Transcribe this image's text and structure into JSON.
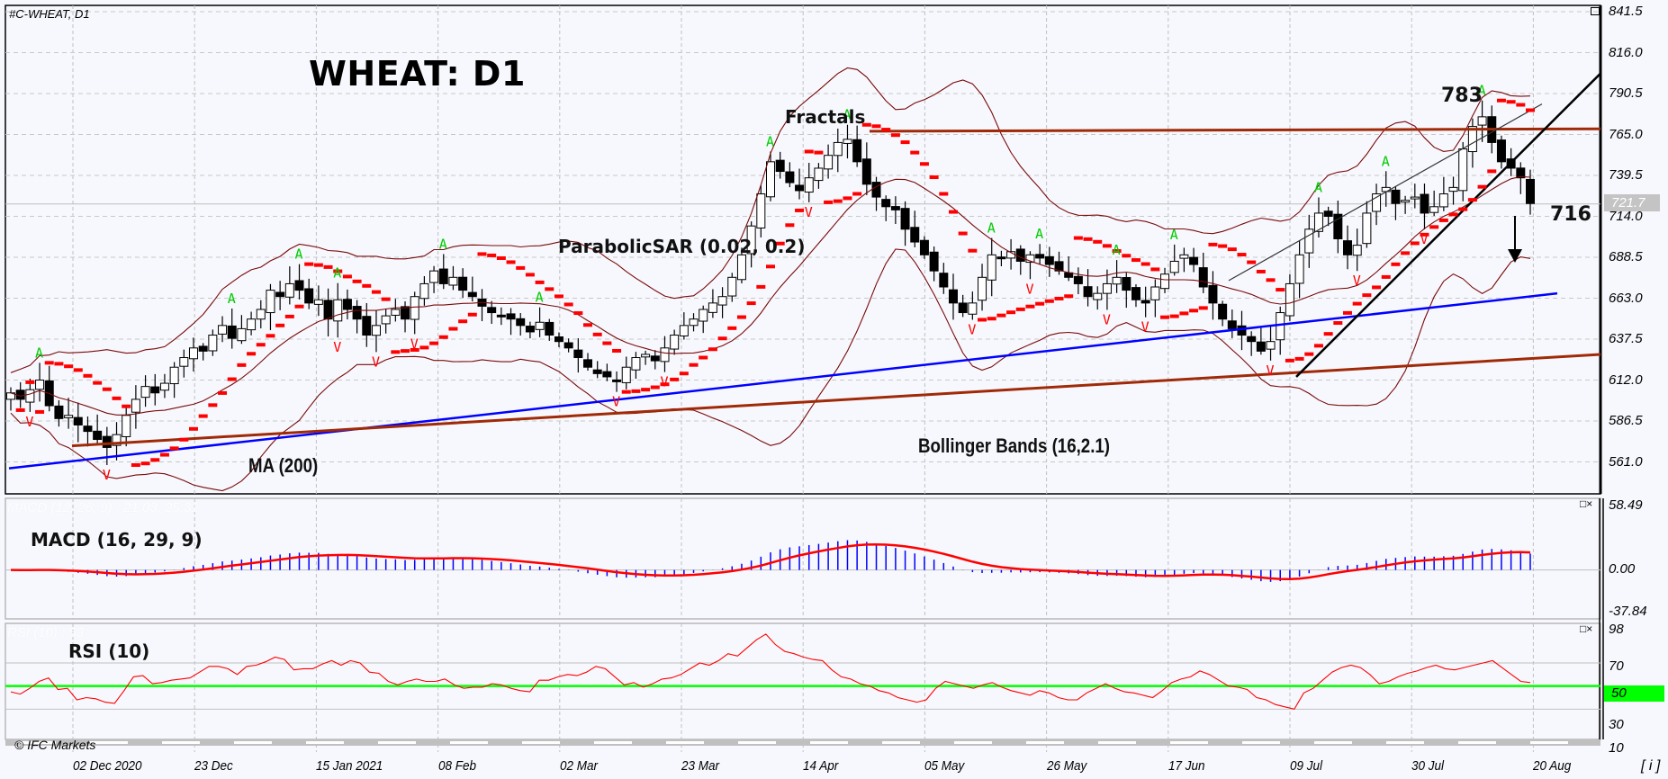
{
  "header": {
    "ticker": "#C-WHEAT, D1",
    "title": "WHEAT: D1"
  },
  "annotations": {
    "fractals": "Fractals",
    "parabolic_sar": "ParabolicSAR (0.02, 0.2)",
    "bollinger": "Bollinger Bands (16,2.1)",
    "ma": "MA (200)",
    "resistance_price": "783",
    "support_price": "716",
    "macd_title": "MACD (16, 29, 9)",
    "rsi_title": "RSI (10)",
    "macd_faint": "MACD (12, 26, 9) : 21.03, 25.31",
    "rsi_faint": "RSI (10) : 53"
  },
  "price_axis": {
    "ticks": [
      "841.5",
      "816.0",
      "790.5",
      "765.0",
      "739.5",
      "714.0",
      "688.5",
      "663.0",
      "637.5",
      "612.0",
      "586.5",
      "561.0"
    ],
    "current_price": "721.7"
  },
  "macd_axis": {
    "ticks": [
      "58.49",
      "0.00",
      "-37.84"
    ]
  },
  "rsi_axis": {
    "ticks": [
      "98",
      "70",
      "50",
      "30",
      "10"
    ]
  },
  "time_axis": {
    "labels": [
      "02 Dec 2020",
      "23 Dec",
      "15 Jan 2021",
      "08 Feb",
      "02 Mar",
      "23 Mar",
      "14 Apr",
      "05 May",
      "26 May",
      "17 Jun",
      "09 Jul",
      "30 Jul",
      "20 Aug"
    ]
  },
  "footer": {
    "copyright": "© IFC Markets",
    "info_button": "[ i ]"
  },
  "panel_controls": {
    "maximize": "□",
    "close": "×"
  },
  "colors": {
    "background": "#f6f8fd",
    "bull_candle": "#ffffff",
    "bear_candle": "#000000",
    "bollinger": "#7a0a0a",
    "sar": "#ff0000",
    "ma200": "#0000ff",
    "trendline_brown": "#a02a08",
    "fractal_up": "#00cc00",
    "fractal_down": "#ff0000",
    "macd_hist": "#0000ff",
    "macd_signal": "#ff0000",
    "rsi_line": "#ff0000",
    "rsi_level50": "#00ff00"
  },
  "chart_data": [
    {
      "type": "candlestick",
      "title": "WHEAT: D1",
      "symbol": "#C-WHEAT",
      "timeframe": "D1",
      "ylim": [
        548,
        845
      ],
      "y_ticks": [
        841.5,
        816.0,
        790.5,
        765.0,
        739.5,
        714.0,
        688.5,
        663.0,
        637.5,
        612.0,
        586.5,
        561.0
      ],
      "x_tick_labels": [
        "02 Dec 2020",
        "23 Dec",
        "15 Jan 2021",
        "08 Feb",
        "02 Mar",
        "23 Mar",
        "14 Apr",
        "05 May",
        "26 May",
        "17 Jun",
        "09 Jul",
        "30 Jul",
        "20 Aug"
      ],
      "current_price": 721.7,
      "annotations": [
        {
          "text": "783",
          "kind": "resistance/high"
        },
        {
          "text": "716",
          "kind": "target/support"
        },
        {
          "text": "down-arrow",
          "kind": "expected direction"
        }
      ],
      "indicators": [
        "ParabolicSAR (0.02, 0.2)",
        "Bollinger Bands (16,2.1)",
        "MA (200)",
        "Fractals"
      ],
      "closes": [
        604,
        600,
        606,
        612,
        596,
        588,
        590,
        584,
        580,
        575,
        570,
        578,
        590,
        600,
        608,
        604,
        610,
        620,
        626,
        632,
        630,
        640,
        646,
        638,
        644,
        650,
        656,
        668,
        664,
        672,
        668,
        660,
        662,
        650,
        662,
        656,
        650,
        640,
        646,
        652,
        656,
        650,
        664,
        672,
        680,
        672,
        676,
        668,
        664,
        658,
        654,
        652,
        650,
        646,
        642,
        648,
        640,
        636,
        632,
        626,
        620,
        616,
        614,
        612,
        620,
        626,
        628,
        624,
        632,
        640,
        646,
        650,
        656,
        660,
        664,
        676,
        690,
        708,
        728,
        748,
        742,
        735,
        730,
        738,
        744,
        752,
        760,
        762,
        748,
        734,
        726,
        720,
        718,
        706,
        698,
        690,
        680,
        670,
        660,
        654,
        660,
        676,
        690,
        688,
        692,
        686,
        690,
        688,
        684,
        680,
        676,
        672,
        664,
        666,
        672,
        676,
        668,
        662,
        660,
        670,
        678,
        686,
        690,
        684,
        670,
        660,
        650,
        644,
        640,
        636,
        630,
        636,
        654,
        672,
        690,
        706,
        716,
        714,
        700,
        690,
        696,
        716,
        728,
        732,
        722,
        724,
        726,
        716,
        720,
        728,
        732,
        756,
        770,
        776,
        760,
        748,
        744,
        738,
        722
      ],
      "ma200": {
        "start": 557,
        "end": 666
      },
      "trendlines": [
        {
          "from": [
            571,
            "2020-11-30"
          ],
          "to": [
            628,
            "2021-08-20"
          ],
          "color": "brown"
        },
        {
          "level": 767,
          "color": "brown",
          "kind": "horizontal resistance"
        }
      ]
    },
    {
      "type": "bar+line",
      "title": "MACD (16, 29, 9)",
      "ylim": [
        -37.84,
        58.49
      ],
      "y_ticks": [
        58.49,
        0.0,
        -37.84
      ],
      "legend_faint": "MACD (12, 26, 9) : 21.03, 25.31",
      "last_values": {
        "macd": 21.03,
        "signal": 25.31
      }
    },
    {
      "type": "line",
      "title": "RSI (10)",
      "ylim": [
        10,
        98
      ],
      "y_ticks": [
        98,
        70,
        50,
        30,
        10
      ],
      "level": 50,
      "last_value": 53,
      "values": [
        45,
        43,
        48,
        54,
        57,
        47,
        48,
        38,
        40,
        39,
        36,
        35,
        46,
        58,
        59,
        52,
        53,
        55,
        56,
        57,
        62,
        67,
        67,
        65,
        60,
        67,
        68,
        71,
        75,
        73,
        64,
        65,
        65,
        69,
        72,
        68,
        72,
        70,
        62,
        61,
        54,
        51,
        54,
        56,
        54,
        54,
        56,
        51,
        48,
        49,
        49,
        52,
        51,
        48,
        46,
        45,
        55,
        55,
        58,
        60,
        59,
        62,
        67,
        65,
        58,
        51,
        53,
        49,
        52,
        56,
        57,
        60,
        65,
        70,
        68,
        72,
        78,
        76,
        83,
        90,
        95,
        86,
        80,
        78,
        75,
        73,
        72,
        64,
        58,
        56,
        52,
        50,
        46,
        44,
        40,
        38,
        36,
        38,
        48,
        54,
        52,
        50,
        48,
        51,
        53,
        49,
        46,
        44,
        42,
        46,
        44,
        40,
        38,
        38,
        44,
        48,
        52,
        48,
        45,
        44,
        42,
        40,
        46,
        53,
        56,
        58,
        63,
        60,
        55,
        50,
        49,
        47,
        40,
        38,
        34,
        32,
        30,
        44,
        48,
        55,
        62,
        66,
        68,
        66,
        60,
        52,
        54,
        58,
        61,
        63,
        66,
        68,
        65,
        64,
        66,
        68,
        70,
        72,
        66,
        60,
        54,
        53
      ]
    }
  ]
}
